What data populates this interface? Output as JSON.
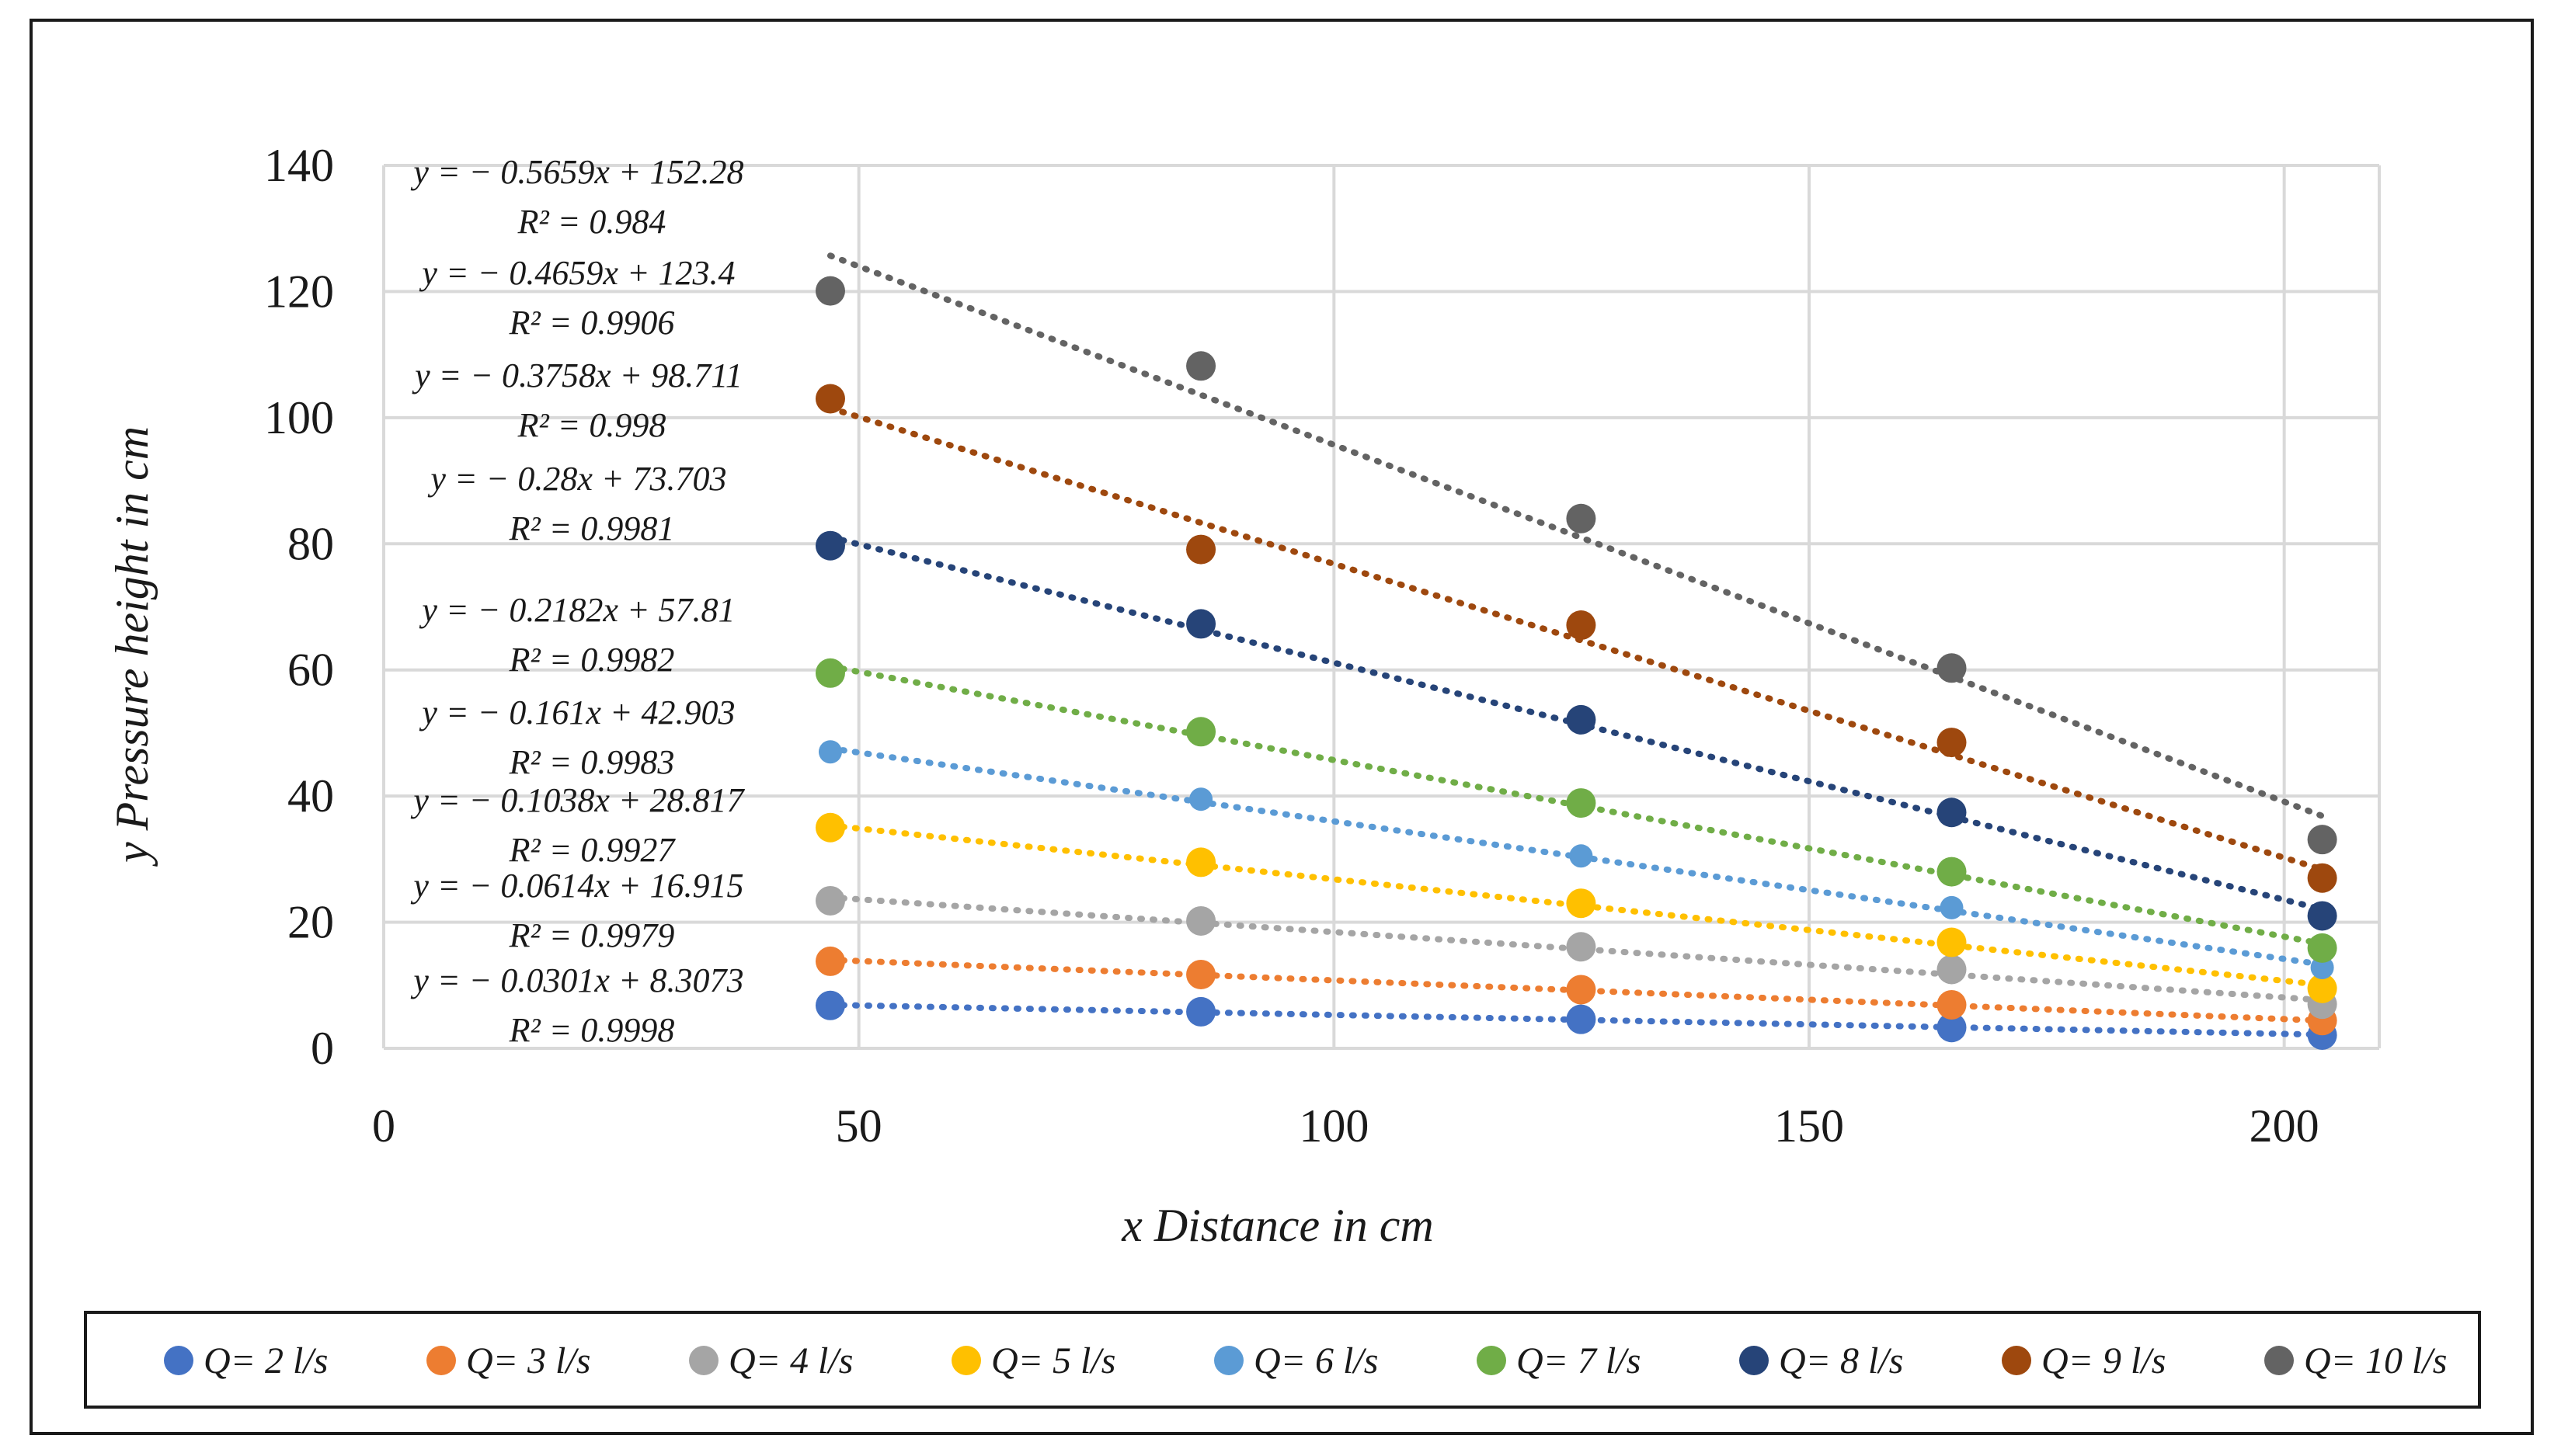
{
  "chart_data": {
    "type": "scatter",
    "title": "",
    "xlabel": "x Distance in cm",
    "ylabel": "y Pressure height in cm",
    "xlim": [
      0,
      210
    ],
    "ylim": [
      0,
      140
    ],
    "xticks": [
      0,
      50,
      100,
      150,
      200
    ],
    "yticks": [
      0,
      20,
      40,
      60,
      80,
      100,
      120,
      140
    ],
    "grid": true,
    "legend_position": "bottom",
    "x": [
      47,
      86,
      126,
      165,
      204
    ],
    "series": [
      {
        "name": "Q= 2 l/s",
        "color": "#4472c4",
        "values": [
          6.8,
          5.8,
          4.6,
          3.3,
          2.1
        ],
        "trendline": {
          "slope": -0.0301,
          "intercept": 8.3073,
          "equation": "y = − 0.0301x + 8.3073",
          "r2": "R² = 0.9998"
        }
      },
      {
        "name": "Q= 3 l/s",
        "color": "#ed7d31",
        "values": [
          13.8,
          11.7,
          9.3,
          6.9,
          4.4
        ],
        "trendline": {
          "slope": -0.0614,
          "intercept": 16.915,
          "equation": "y = − 0.0614x + 16.915",
          "r2": "R² = 0.9979"
        }
      },
      {
        "name": "Q= 4 l/s",
        "color": "#a5a5a5",
        "values": [
          23.4,
          20.2,
          16.1,
          12.5,
          7.0
        ],
        "trendline": {
          "slope": -0.1038,
          "intercept": 28.817,
          "equation": "y = − 0.1038x + 28.817",
          "r2": "R² = 0.9927"
        }
      },
      {
        "name": "Q= 5 l/s",
        "color": "#ffc000",
        "values": [
          35.0,
          29.5,
          23.0,
          16.8,
          9.5
        ],
        "trendline": {
          "slope": -0.161,
          "intercept": 42.903,
          "equation": "y = − 0.161x + 42.903",
          "r2": "R² = 0.9983"
        }
      },
      {
        "name": "Q= 6 l/s",
        "color": "#5b9bd5",
        "values": [
          47.0,
          39.5,
          30.5,
          22.3,
          12.8
        ],
        "trendline": {
          "slope": -0.2182,
          "intercept": 57.81,
          "equation": "y = − 0.2182x + 57.81",
          "r2": "R² = 0.9982"
        }
      },
      {
        "name": "Q= 7 l/s",
        "color": "#70ad47",
        "values": [
          59.5,
          50.2,
          38.9,
          28.0,
          15.9
        ],
        "trendline": {
          "slope": -0.28,
          "intercept": 73.703,
          "equation": "y = − 0.28x + 73.703",
          "r2": "R² = 0.9981"
        }
      },
      {
        "name": "Q= 8 l/s",
        "color": "#264478",
        "values": [
          79.7,
          67.3,
          52.1,
          37.4,
          21.0
        ],
        "trendline": {
          "slope": -0.3758,
          "intercept": 98.711,
          "equation": "y = − 0.3758x + 98.711",
          "r2": "R² = 0.998"
        }
      },
      {
        "name": "Q= 9 l/s",
        "color": "#9e480e",
        "values": [
          103.0,
          79.1,
          67.1,
          48.5,
          27.0
        ],
        "trendline": {
          "slope": -0.4659,
          "intercept": 123.4,
          "equation": "y = − 0.4659x + 123.4",
          "r2": "R² = 0.9906"
        }
      },
      {
        "name": "Q= 10 l/s",
        "color": "#636363",
        "values": [
          120.1,
          108.2,
          84.0,
          60.3,
          33.1
        ],
        "trendline": {
          "slope": -0.5659,
          "intercept": 152.28,
          "equation": "y = − 0.5659x + 152.28",
          "r2": "R² = 0.984"
        }
      }
    ]
  }
}
